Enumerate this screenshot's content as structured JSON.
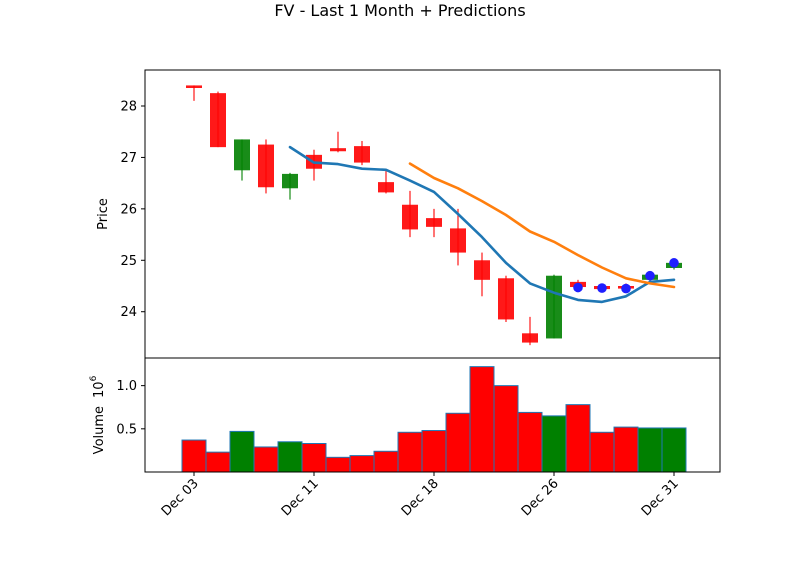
{
  "chart_data": {
    "type": "candlestick",
    "title": "FV - Last 1 Month + Predictions",
    "price_panel": {
      "ylabel": "Price",
      "ylim": [
        23.1,
        28.7
      ],
      "yticks": [
        24,
        25,
        26,
        27,
        28
      ],
      "candles": [
        {
          "open": 28.4,
          "high": 28.4,
          "low": 28.1,
          "close": 28.35,
          "color": "red"
        },
        {
          "open": 28.25,
          "high": 28.28,
          "low": 27.2,
          "close": 27.2,
          "color": "red"
        },
        {
          "open": 26.75,
          "high": 27.35,
          "low": 26.55,
          "close": 27.35,
          "color": "green"
        },
        {
          "open": 27.25,
          "high": 27.35,
          "low": 26.3,
          "close": 26.42,
          "color": "red"
        },
        {
          "open": 26.4,
          "high": 26.7,
          "low": 26.18,
          "close": 26.68,
          "color": "green"
        },
        {
          "open": 27.05,
          "high": 27.15,
          "low": 26.55,
          "close": 26.78,
          "color": "red"
        },
        {
          "open": 27.18,
          "high": 27.5,
          "low": 27.1,
          "close": 27.12,
          "color": "red"
        },
        {
          "open": 27.22,
          "high": 27.32,
          "low": 26.85,
          "close": 26.9,
          "color": "red"
        },
        {
          "open": 26.52,
          "high": 26.75,
          "low": 26.3,
          "close": 26.32,
          "color": "red"
        },
        {
          "open": 26.08,
          "high": 26.35,
          "low": 25.45,
          "close": 25.6,
          "color": "red"
        },
        {
          "open": 25.82,
          "high": 26.0,
          "low": 25.45,
          "close": 25.65,
          "color": "red"
        },
        {
          "open": 25.62,
          "high": 26.0,
          "low": 24.9,
          "close": 25.15,
          "color": "red"
        },
        {
          "open": 25.0,
          "high": 25.15,
          "low": 24.3,
          "close": 24.62,
          "color": "red"
        },
        {
          "open": 24.65,
          "high": 24.7,
          "low": 23.8,
          "close": 23.85,
          "color": "red"
        },
        {
          "open": 23.58,
          "high": 23.9,
          "low": 23.35,
          "close": 23.4,
          "color": "red"
        },
        {
          "open": 23.48,
          "high": 24.72,
          "low": 23.48,
          "close": 24.7,
          "color": "green"
        },
        {
          "open": 24.58,
          "high": 24.62,
          "low": 24.45,
          "close": 24.48,
          "color": "red"
        },
        {
          "open": 24.5,
          "high": 24.52,
          "low": 24.4,
          "close": 24.44,
          "color": "red"
        },
        {
          "open": 24.5,
          "high": 24.55,
          "low": 24.4,
          "close": 24.45,
          "color": "red"
        },
        {
          "open": 24.62,
          "high": 24.75,
          "low": 24.58,
          "close": 24.72,
          "color": "green"
        },
        {
          "open": 24.85,
          "high": 25.0,
          "low": 24.82,
          "close": 24.95,
          "color": "green"
        }
      ],
      "ma_short": {
        "color": "#1f77b4",
        "points": [
          [
            5,
            27.2
          ],
          [
            6,
            26.9
          ],
          [
            7,
            26.87
          ],
          [
            8,
            26.78
          ],
          [
            9,
            26.76
          ],
          [
            10,
            26.55
          ],
          [
            11,
            26.33
          ],
          [
            12,
            25.9
          ],
          [
            13,
            25.45
          ],
          [
            14,
            24.95
          ],
          [
            15,
            24.55
          ],
          [
            16,
            24.37
          ],
          [
            17,
            24.23
          ],
          [
            18,
            24.19
          ],
          [
            19,
            24.3
          ],
          [
            20,
            24.58
          ],
          [
            21,
            24.62
          ]
        ]
      },
      "ma_long": {
        "color": "#ff7f0e",
        "points": [
          [
            10,
            26.88
          ],
          [
            11,
            26.6
          ],
          [
            12,
            26.4
          ],
          [
            13,
            26.15
          ],
          [
            14,
            25.88
          ],
          [
            15,
            25.56
          ],
          [
            16,
            25.36
          ],
          [
            17,
            25.1
          ],
          [
            18,
            24.86
          ],
          [
            19,
            24.65
          ],
          [
            20,
            24.55
          ],
          [
            21,
            24.48
          ]
        ]
      },
      "predictions": {
        "marker_color": "#1f1fff",
        "points": [
          [
            17,
            24.47
          ],
          [
            18,
            24.46
          ],
          [
            19,
            24.45
          ],
          [
            20,
            24.7
          ],
          [
            21,
            24.95
          ]
        ]
      }
    },
    "volume_panel": {
      "ylabel": "Volume",
      "ylabel_exponent": "10",
      "ylabel_exponent_power": "6",
      "ylim": [
        0,
        1.32
      ],
      "yticks": [
        {
          "value": 0.5,
          "label": "0.5"
        },
        {
          "value": 1.0,
          "label": "1.0"
        }
      ],
      "values": [
        0.37,
        0.23,
        0.47,
        0.29,
        0.35,
        0.33,
        0.17,
        0.19,
        0.24,
        0.46,
        0.48,
        0.68,
        1.22,
        1.0,
        0.69,
        0.65,
        0.78,
        0.46,
        0.52,
        0.51,
        0.51
      ],
      "colors": [
        "red",
        "red",
        "green",
        "red",
        "green",
        "red",
        "red",
        "red",
        "red",
        "red",
        "red",
        "red",
        "red",
        "red",
        "red",
        "green",
        "red",
        "red",
        "red",
        "green",
        "green"
      ]
    },
    "x_axis": {
      "tick_positions": [
        1,
        6,
        11,
        16,
        21
      ],
      "tick_labels": [
        "Dec 03",
        "Dec 11",
        "Dec 18",
        "Dec 26",
        "Dec 31"
      ]
    },
    "colors": {
      "up": "#008000",
      "down": "#ff0000"
    }
  }
}
